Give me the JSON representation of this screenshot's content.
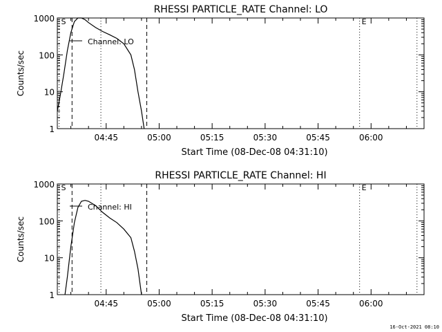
{
  "footer": {
    "timestamp": "16-Oct-2021 08:10"
  },
  "chart_data": [
    {
      "type": "line",
      "title": "RHESSI PARTICLE_RATE Channel: LO",
      "xlabel": "Start Time (08-Dec-08 04:31:10)",
      "ylabel": "Counts/sec",
      "y_scale": "log",
      "ylim": [
        1,
        1000
      ],
      "xlim": [
        "04:31:10",
        "06:15:00"
      ],
      "x_ticks": [
        "04:45",
        "05:00",
        "05:15",
        "05:30",
        "05:45",
        "06:00"
      ],
      "y_ticks": [
        "1",
        "10",
        "100",
        "1000"
      ],
      "legend": "Channel: LO",
      "series": [
        {
          "name": "Channel: LO",
          "x": [
            "04:31:10",
            "04:32:00",
            "04:33:00",
            "04:34:00",
            "04:35:00",
            "04:36:00",
            "04:37:00",
            "04:38:00",
            "04:39:00",
            "04:40:00",
            "04:42:00",
            "04:44:00",
            "04:46:00",
            "04:48:00",
            "04:50:00",
            "04:52:00",
            "04:53:00",
            "04:54:00",
            "04:55:00",
            "04:55:45"
          ],
          "values": [
            3,
            8,
            30,
            130,
            400,
            800,
            1000,
            1000,
            900,
            750,
            550,
            430,
            350,
            280,
            200,
            100,
            40,
            10,
            3,
            1
          ]
        }
      ],
      "markers": [
        {
          "label": "S",
          "time": "04:31:40",
          "style": "dotted"
        },
        {
          "label": "",
          "time": "04:43:30",
          "style": "dotted"
        },
        {
          "label": "E",
          "time": "05:56:45",
          "style": "dotted"
        },
        {
          "label": "",
          "time": "06:13:00",
          "style": "dotted"
        },
        {
          "label": "",
          "time": "04:35:20",
          "style": "dashed"
        },
        {
          "label": "",
          "time": "04:56:30",
          "style": "dashed"
        }
      ]
    },
    {
      "type": "line",
      "title": "RHESSI PARTICLE_RATE Channel: HI",
      "xlabel": "Start Time (08-Dec-08 04:31:10)",
      "ylabel": "Counts/sec",
      "y_scale": "log",
      "ylim": [
        1,
        1000
      ],
      "xlim": [
        "04:31:10",
        "06:15:00"
      ],
      "x_ticks": [
        "04:45",
        "05:00",
        "05:15",
        "05:30",
        "05:45",
        "06:00"
      ],
      "y_ticks": [
        "1",
        "10",
        "100",
        "1000"
      ],
      "legend": "Channel: HI",
      "series": [
        {
          "name": "Channel: HI",
          "x": [
            "04:33:20",
            "04:34:00",
            "04:35:00",
            "04:36:00",
            "04:37:00",
            "04:38:00",
            "04:39:00",
            "04:40:00",
            "04:42:00",
            "04:44:00",
            "04:46:00",
            "04:48:00",
            "04:50:00",
            "04:52:00",
            "04:53:00",
            "04:54:00",
            "04:55:00"
          ],
          "values": [
            1,
            3,
            20,
            90,
            230,
            340,
            360,
            340,
            260,
            170,
            120,
            90,
            60,
            35,
            15,
            5,
            1
          ]
        }
      ],
      "markers": [
        {
          "label": "S",
          "time": "04:31:40",
          "style": "dotted"
        },
        {
          "label": "",
          "time": "04:43:30",
          "style": "dotted"
        },
        {
          "label": "E",
          "time": "05:56:45",
          "style": "dotted"
        },
        {
          "label": "",
          "time": "06:13:00",
          "style": "dotted"
        },
        {
          "label": "",
          "time": "04:35:20",
          "style": "dashed"
        },
        {
          "label": "",
          "time": "04:56:30",
          "style": "dashed"
        }
      ]
    }
  ]
}
